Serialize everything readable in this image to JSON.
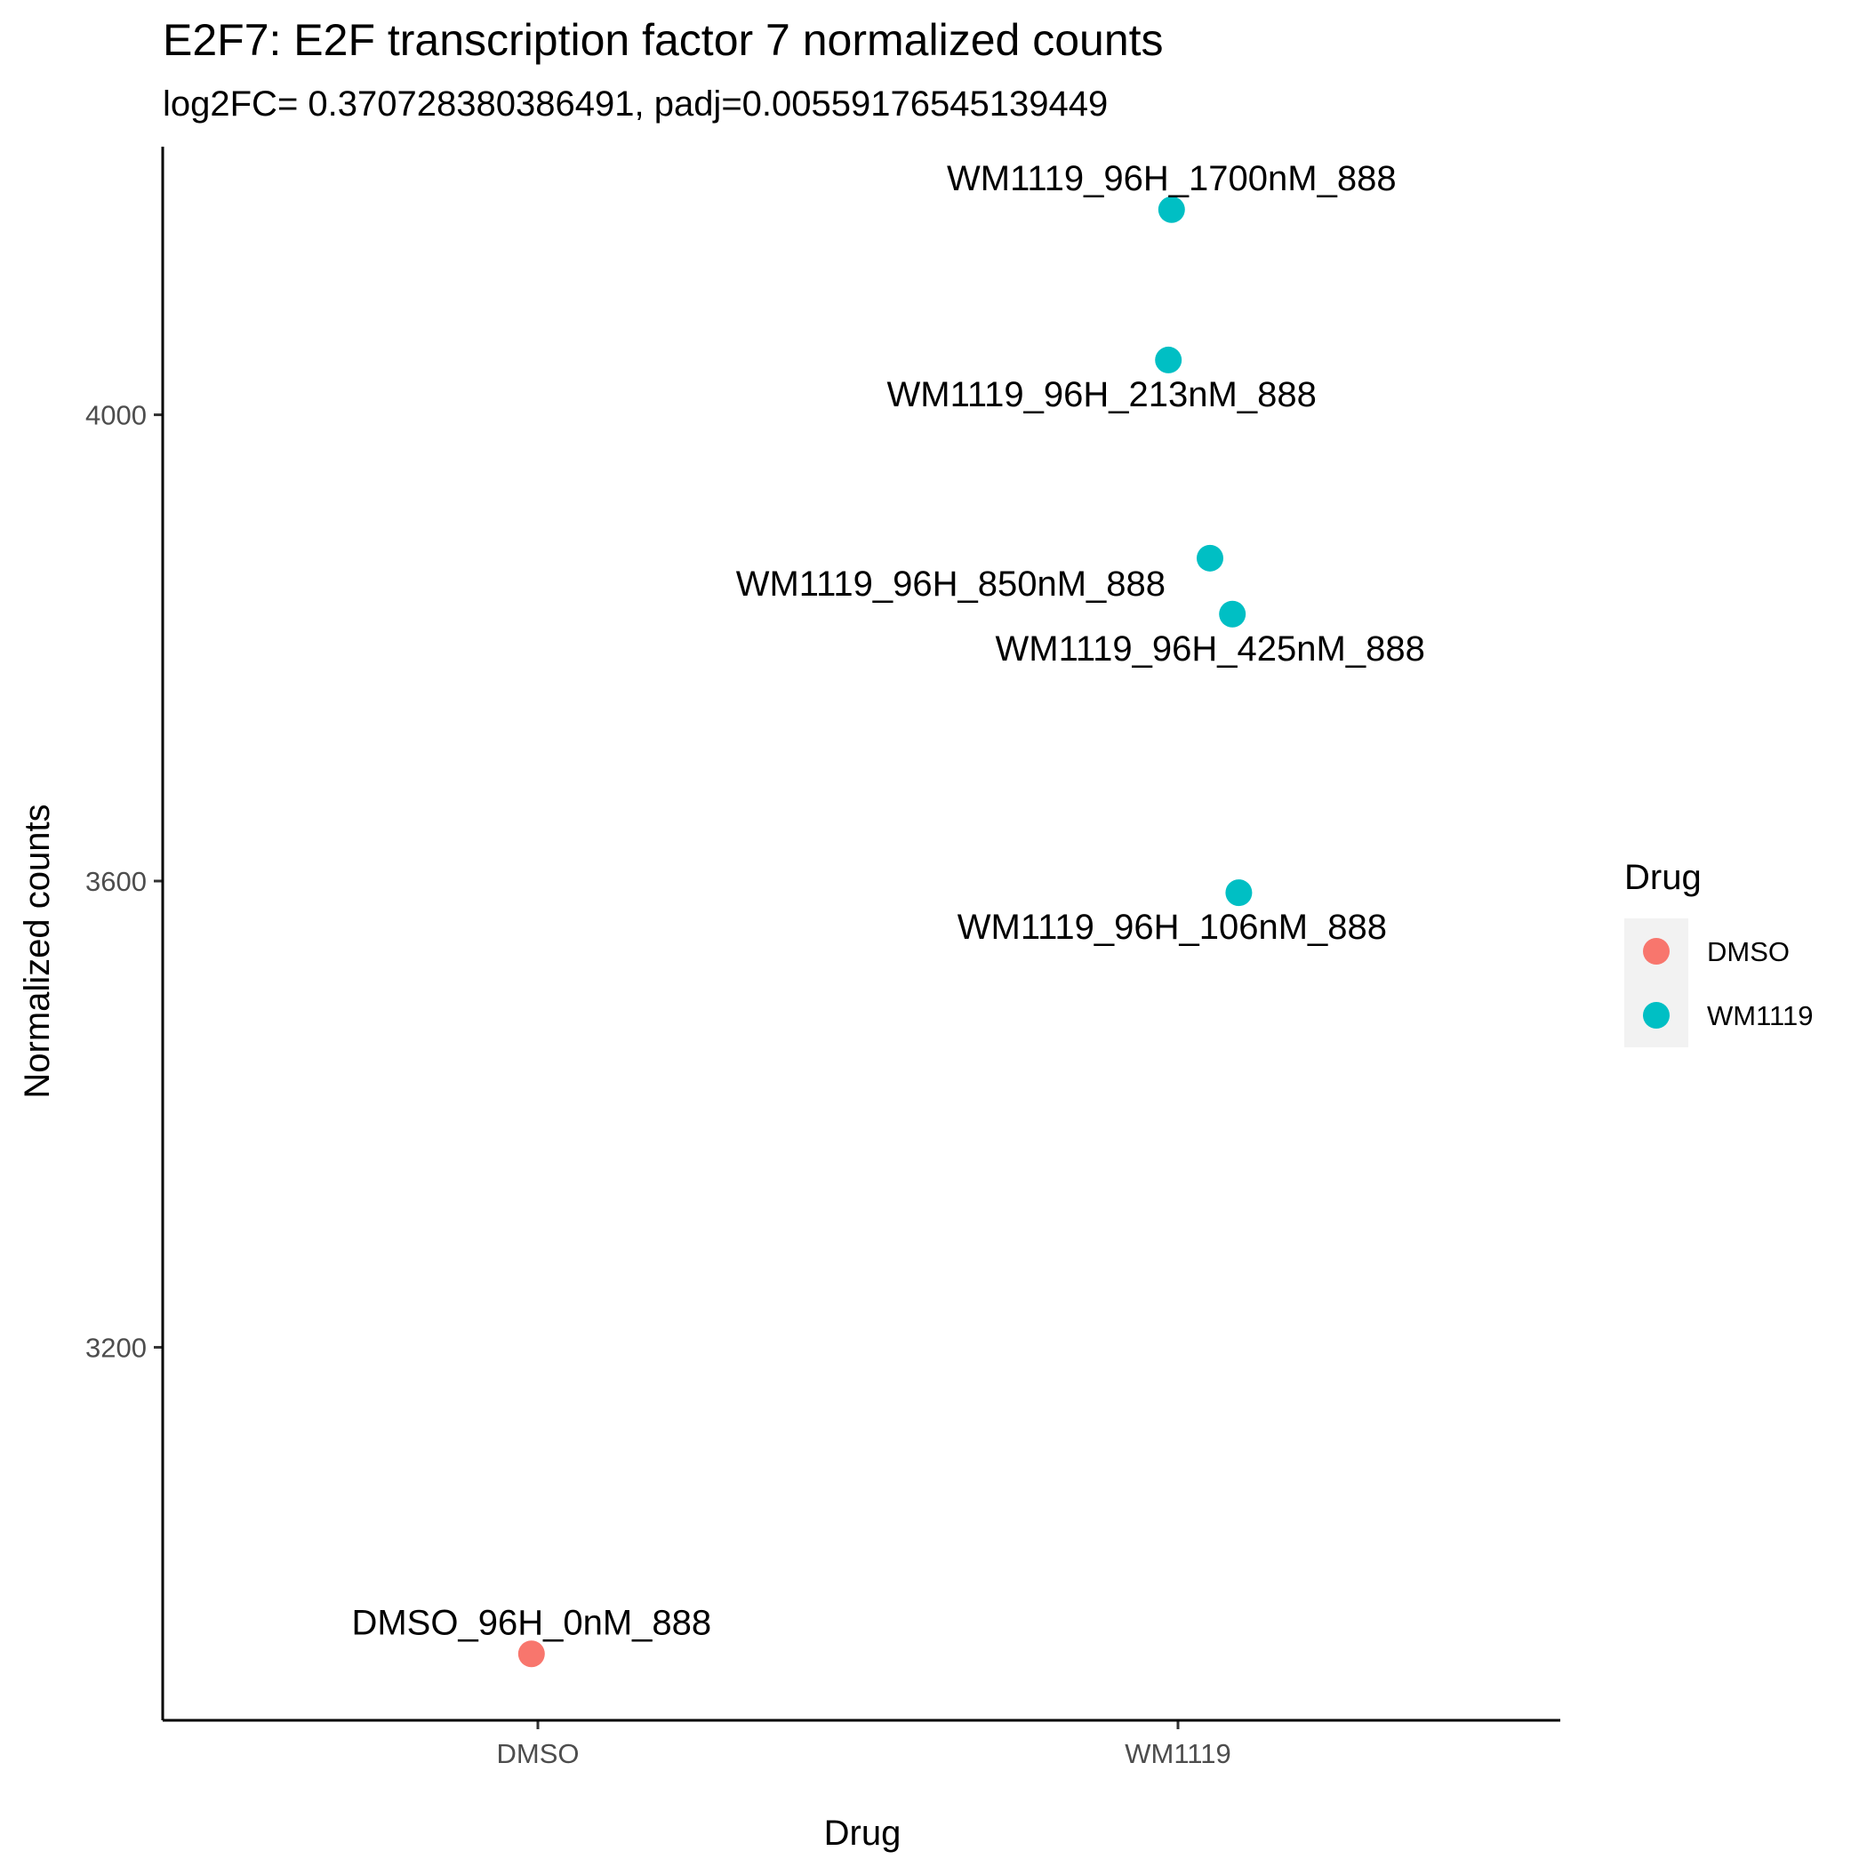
{
  "chart_data": {
    "type": "scatter",
    "title": "E2F7: E2F transcription factor 7 normalized counts",
    "subtitle": "log2FC= 0.370728380386491, padj=0.00559176545139449",
    "xlabel": "Drug",
    "ylabel": "Normalized counts",
    "categories": [
      "DMSO",
      "WM1119"
    ],
    "yticks": [
      3200,
      3600,
      4000
    ],
    "ylim": [
      2880,
      4230
    ],
    "grid": false,
    "legend": {
      "title": "Drug",
      "position": "right",
      "entries": [
        {
          "label": "DMSO",
          "color": "#F8766D"
        },
        {
          "label": "WM1119",
          "color": "#00BFC4"
        }
      ]
    },
    "points": [
      {
        "label": "DMSO_96H_0nM_888",
        "category": "DMSO",
        "jitter": -0.01,
        "y": 2937,
        "color": "#F8766D",
        "label_pos": "above"
      },
      {
        "label": "WM1119_96H_1700nM_888",
        "category": "WM1119",
        "jitter": -0.01,
        "y": 4176,
        "color": "#00BFC4",
        "label_pos": "above"
      },
      {
        "label": "WM1119_96H_213nM_888",
        "category": "WM1119",
        "jitter": -0.015,
        "y": 4047,
        "color": "#00BFC4",
        "label_pos": "below-left"
      },
      {
        "label": "WM1119_96H_850nM_888",
        "category": "WM1119",
        "jitter": 0.05,
        "y": 3877,
        "color": "#00BFC4",
        "label_pos": "left"
      },
      {
        "label": "WM1119_96H_425nM_888",
        "category": "WM1119",
        "jitter": 0.085,
        "y": 3829,
        "color": "#00BFC4",
        "label_pos": "below"
      },
      {
        "label": "WM1119_96H_106nM_888",
        "category": "WM1119",
        "jitter": 0.095,
        "y": 3590,
        "color": "#00BFC4",
        "label_pos": "below-left"
      }
    ]
  }
}
